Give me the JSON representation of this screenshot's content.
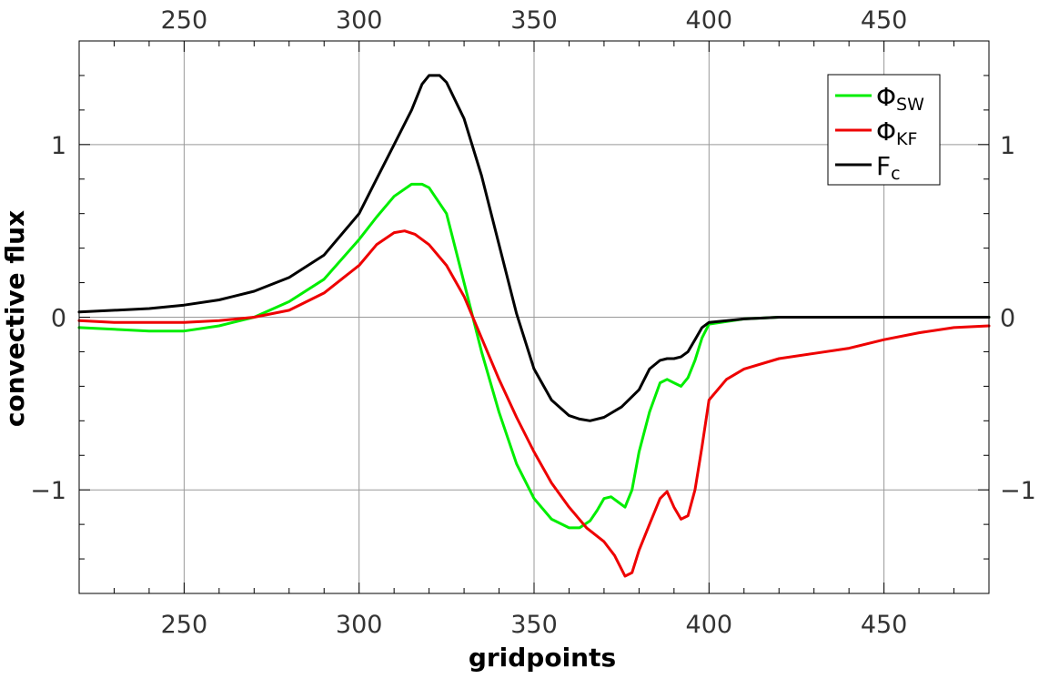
{
  "chart_data": {
    "type": "line",
    "xlabel": "gridpoints",
    "ylabel": "convective flux",
    "xlim": [
      220,
      480
    ],
    "ylim": [
      -1.6,
      1.6
    ],
    "x_ticks": [
      250,
      300,
      350,
      400,
      450
    ],
    "y_ticks": [
      -1,
      0,
      1
    ],
    "x_tick_labels": [
      "250",
      "300",
      "350",
      "400",
      "450"
    ],
    "y_tick_labels": [
      "−1",
      "0",
      "1"
    ],
    "grid": true,
    "legend_position": "top-right",
    "series": [
      {
        "name": "ΦSW",
        "legend_main": "Φ",
        "legend_sub": "SW",
        "color": "#00ee00",
        "x": [
          220,
          230,
          240,
          250,
          260,
          270,
          280,
          290,
          300,
          305,
          310,
          315,
          318,
          320,
          325,
          330,
          335,
          340,
          345,
          350,
          355,
          360,
          363,
          366,
          368,
          370,
          372,
          374,
          376,
          378,
          380,
          383,
          386,
          388,
          390,
          392,
          394,
          396,
          398,
          400,
          410,
          420,
          440,
          460,
          480
        ],
        "y": [
          -0.06,
          -0.07,
          -0.08,
          -0.08,
          -0.05,
          0.0,
          0.09,
          0.22,
          0.45,
          0.58,
          0.7,
          0.77,
          0.77,
          0.75,
          0.6,
          0.2,
          -0.2,
          -0.55,
          -0.85,
          -1.05,
          -1.17,
          -1.22,
          -1.22,
          -1.18,
          -1.12,
          -1.05,
          -1.04,
          -1.07,
          -1.1,
          -1.0,
          -0.78,
          -0.55,
          -0.38,
          -0.36,
          -0.38,
          -0.4,
          -0.35,
          -0.25,
          -0.12,
          -0.04,
          -0.01,
          0.0,
          0.0,
          0.0,
          0.0
        ]
      },
      {
        "name": "ΦKF",
        "legend_main": "Φ",
        "legend_sub": "KF",
        "color": "#ee0000",
        "x": [
          220,
          230,
          240,
          250,
          260,
          270,
          280,
          290,
          300,
          305,
          310,
          313,
          316,
          320,
          325,
          330,
          335,
          340,
          345,
          350,
          355,
          360,
          365,
          370,
          373,
          376,
          378,
          380,
          383,
          386,
          388,
          390,
          392,
          394,
          396,
          398,
          400,
          405,
          410,
          420,
          430,
          440,
          450,
          460,
          470,
          480
        ],
        "y": [
          -0.02,
          -0.03,
          -0.03,
          -0.03,
          -0.02,
          0.0,
          0.04,
          0.14,
          0.3,
          0.42,
          0.49,
          0.5,
          0.48,
          0.42,
          0.3,
          0.12,
          -0.12,
          -0.36,
          -0.58,
          -0.78,
          -0.96,
          -1.1,
          -1.22,
          -1.3,
          -1.38,
          -1.5,
          -1.48,
          -1.35,
          -1.2,
          -1.05,
          -1.01,
          -1.1,
          -1.17,
          -1.15,
          -1.0,
          -0.75,
          -0.48,
          -0.36,
          -0.3,
          -0.24,
          -0.21,
          -0.18,
          -0.13,
          -0.09,
          -0.06,
          -0.05
        ]
      },
      {
        "name": "Fc",
        "legend_main": "F",
        "legend_sub": "c",
        "color": "#000000",
        "x": [
          220,
          230,
          240,
          250,
          260,
          270,
          280,
          290,
          300,
          305,
          310,
          315,
          318,
          320,
          323,
          325,
          330,
          335,
          340,
          345,
          350,
          355,
          360,
          363,
          366,
          370,
          375,
          380,
          383,
          386,
          388,
          390,
          392,
          394,
          396,
          398,
          400,
          410,
          420,
          440,
          460,
          480
        ],
        "y": [
          0.03,
          0.04,
          0.05,
          0.07,
          0.1,
          0.15,
          0.23,
          0.36,
          0.6,
          0.8,
          1.0,
          1.2,
          1.35,
          1.4,
          1.4,
          1.36,
          1.15,
          0.82,
          0.42,
          0.02,
          -0.3,
          -0.48,
          -0.57,
          -0.59,
          -0.6,
          -0.58,
          -0.52,
          -0.42,
          -0.3,
          -0.25,
          -0.24,
          -0.24,
          -0.23,
          -0.2,
          -0.13,
          -0.06,
          -0.03,
          -0.01,
          0.0,
          0.0,
          0.0,
          0.0
        ]
      }
    ]
  }
}
